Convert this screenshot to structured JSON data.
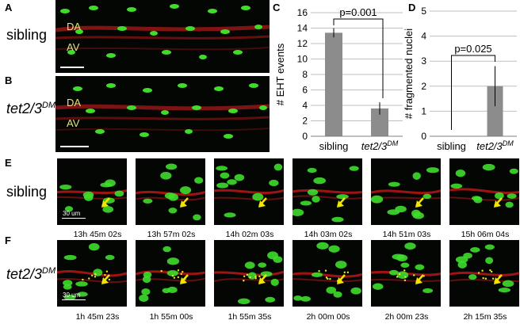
{
  "panel_labels": {
    "a": "A",
    "b": "B",
    "c": "C",
    "d": "D",
    "e": "E",
    "f": "F"
  },
  "row_labels": {
    "sibling_top": "sibling",
    "mutant_top_base": "tet2/3",
    "mutant_top_sup": "DM",
    "sibling_e": "sibling",
    "mutant_f_base": "tet2/3",
    "mutant_f_sup": "DM"
  },
  "vessel_labels": {
    "da": "DA",
    "av": "AV"
  },
  "scale_bar_label": "30 um",
  "timestamps_e": [
    "13h 45m 02s",
    "13h 57m 02s",
    "14h 02m 03s",
    "14h 03m 02s",
    "14h 51m 03s",
    "15h 06m 04s"
  ],
  "timestamps_f": [
    "1h 45m 23s",
    "1h 55m 00s",
    "1h 55m 35s",
    "2h 00m 00s",
    "2h 00m 23s",
    "2h 15m 35s"
  ],
  "colors": {
    "bar_fill": "#8c8c8c",
    "grid": "#bfbfbf",
    "arrow": "#f2e600",
    "label": "#e3e37a"
  },
  "chart_data": [
    {
      "type": "bar",
      "categories": [
        "sibling",
        "tet2/3DM"
      ],
      "category_display": [
        {
          "base": "sibling",
          "sup": ""
        },
        {
          "base": "tet2/3",
          "sup": "DM"
        }
      ],
      "values": [
        13.4,
        3.6
      ],
      "errors": [
        0.6,
        0.8
      ],
      "ylabel": "# EHT events",
      "ylim": [
        0,
        16
      ],
      "yticks": [
        "0",
        "2",
        "4",
        "6",
        "8",
        "10",
        "12",
        "14",
        "16"
      ],
      "grid": true,
      "annotation": "p=0.001"
    },
    {
      "type": "bar",
      "categories": [
        "sibling",
        "tet2/3DM"
      ],
      "category_display": [
        {
          "base": "sibling",
          "sup": ""
        },
        {
          "base": "tet2/3",
          "sup": "DM"
        }
      ],
      "values": [
        0,
        2
      ],
      "errors": [
        0,
        0.8
      ],
      "ylabel": "# fragmented nuclei",
      "ylim": [
        0,
        5
      ],
      "yticks": [
        "0",
        "1",
        "2",
        "3",
        "4",
        "5"
      ],
      "grid": true,
      "annotation": "p=0.025"
    }
  ]
}
